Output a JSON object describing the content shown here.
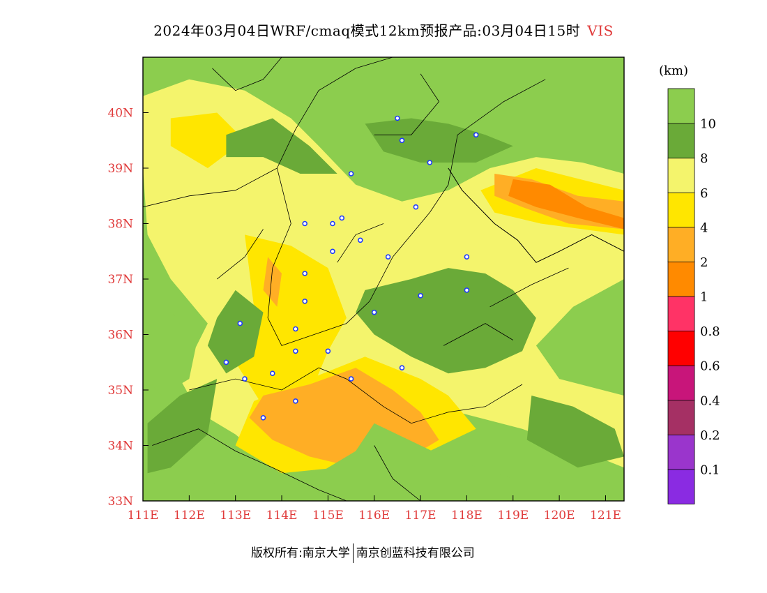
{
  "title": {
    "main": "2024年03月04日WRF/cmaq模式12km预报产品:03月04日15时",
    "variable": "VIS"
  },
  "legend": {
    "unit": "(km)",
    "colors": [
      "#8a2be2",
      "#9a35cc",
      "#a53064",
      "#c8157a",
      "#ff0000",
      "#ff3366",
      "#ff8a00",
      "#ffae25",
      "#ffe600",
      "#f4f46c",
      "#6aaa38",
      "#8ccd4e"
    ],
    "labels": [
      "0.1",
      "0.2",
      "0.4",
      "0.6",
      "0.8",
      "1",
      "2",
      "4",
      "6",
      "8",
      "10"
    ]
  },
  "axes": {
    "x_ticks": [
      "111E",
      "112E",
      "113E",
      "114E",
      "115E",
      "116E",
      "117E",
      "118E",
      "119E",
      "120E",
      "121E"
    ],
    "y_ticks": [
      "33N",
      "34N",
      "35N",
      "36N",
      "37N",
      "38N",
      "39N",
      "40N"
    ],
    "tick_color": "#e03a3a"
  },
  "map": {
    "lon_range": [
      111,
      121.4
    ],
    "lat_range": [
      33,
      41
    ],
    "background_color": "#8ccd4e",
    "city_markers": [
      [
        115.1,
        38.0
      ],
      [
        115.3,
        38.1
      ],
      [
        115.1,
        37.5
      ],
      [
        116.5,
        39.9
      ],
      [
        117.2,
        39.1
      ],
      [
        118.2,
        39.6
      ],
      [
        116.6,
        39.5
      ],
      [
        115.5,
        38.9
      ],
      [
        116.9,
        38.3
      ],
      [
        114.5,
        38.0
      ],
      [
        115.7,
        37.7
      ],
      [
        116.3,
        37.4
      ],
      [
        114.5,
        37.1
      ],
      [
        114.5,
        36.6
      ],
      [
        116.0,
        36.4
      ],
      [
        117.0,
        36.7
      ],
      [
        118.0,
        36.8
      ],
      [
        118.0,
        37.4
      ],
      [
        113.1,
        36.2
      ],
      [
        114.3,
        36.1
      ],
      [
        114.3,
        35.7
      ],
      [
        115.0,
        35.7
      ],
      [
        113.8,
        35.3
      ],
      [
        113.2,
        35.2
      ],
      [
        112.8,
        35.5
      ],
      [
        115.5,
        35.2
      ],
      [
        116.6,
        35.4
      ],
      [
        114.3,
        34.8
      ],
      [
        113.6,
        34.5
      ]
    ]
  },
  "footer": {
    "copyright": "版权所有:南京大学",
    "company": "南京创蓝科技有限公司"
  }
}
